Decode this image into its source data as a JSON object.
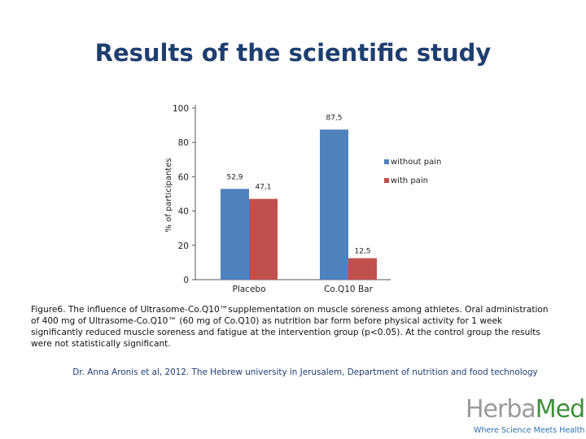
{
  "slide": {
    "title": "Results of the scientific study",
    "caption": "Figure6. The influence of Ultrasome-Co.Q10™supplementation on muscle soreness among athletes. Oral administration of 400 mg of Ultrasome-Co.Q10™ (60 mg of Co.Q10) as nutrition bar form before physical activity for 1 week significantly reduced muscle soreness and fatigue at the intervention group (p<0.05). At the control group the results were not statistically significant.",
    "citation": "Dr. Anna Aronis et al, 2012. The Hebrew university in Jerusalem, Department of nutrition and food technology",
    "logo": {
      "word_part1": "Herba",
      "word_part2": "Med",
      "tagline": "Where Science Meets Health"
    }
  },
  "chart_data": {
    "type": "bar",
    "categories": [
      "Placebo",
      "Co.Q10 Bar"
    ],
    "series": [
      {
        "name": "without pain",
        "values": [
          52.9,
          87.5
        ],
        "labels": [
          "52,9",
          "87,5"
        ],
        "color": "#4f81bd"
      },
      {
        "name": "with pain",
        "values": [
          47.1,
          12.5
        ],
        "labels": [
          "47,1",
          "12,5"
        ],
        "color": "#c0504d"
      }
    ],
    "ylabel": "% of participantes",
    "ylim": [
      0,
      100
    ],
    "yticks": [
      0,
      20,
      40,
      60,
      80,
      100
    ],
    "grid": false,
    "legend": "right"
  }
}
